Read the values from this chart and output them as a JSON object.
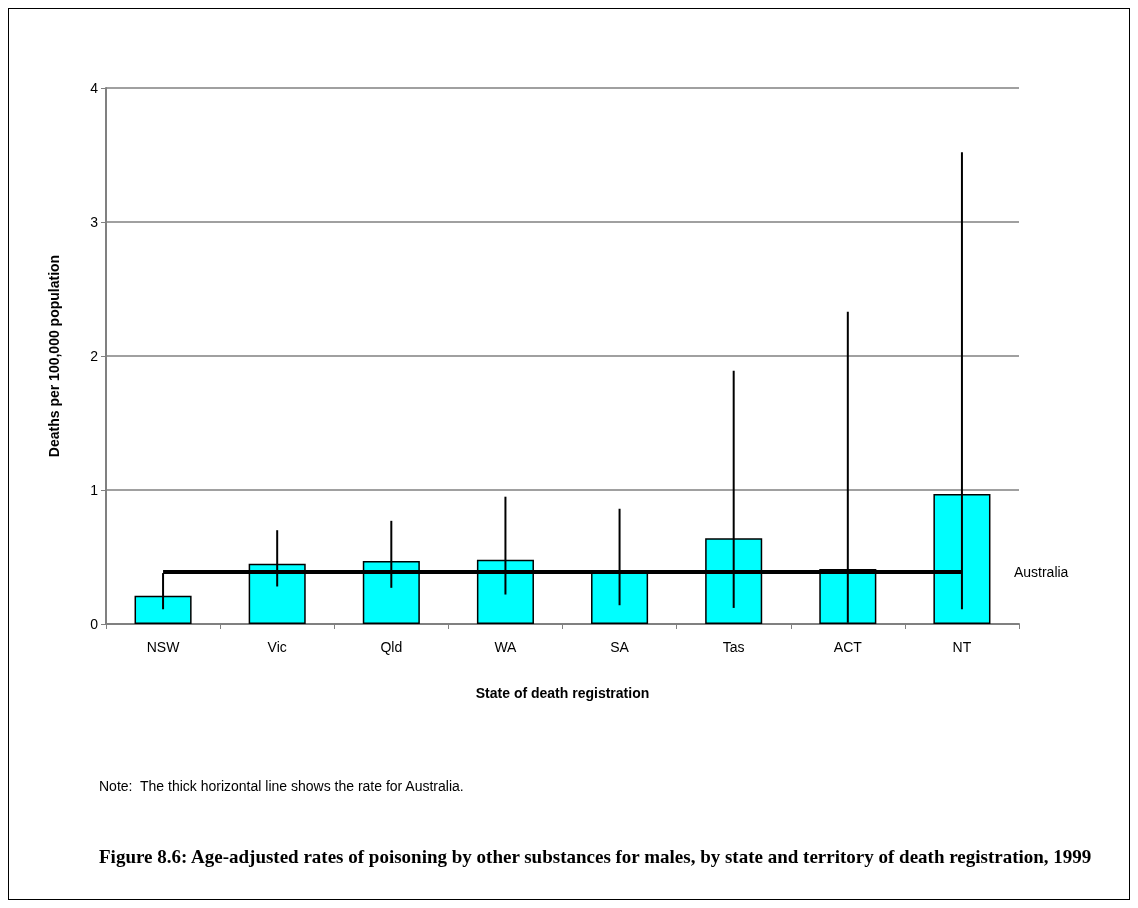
{
  "chart_data": {
    "type": "bar",
    "title": "Figure 8.6: Age-adjusted rates of poisoning by other substances for males, by state and territory of death registration, 1999",
    "xlabel": "State of death registration",
    "ylabel": "Deaths per 100,000 population",
    "categories": [
      "NSW",
      "Vic",
      "Qld",
      "WA",
      "SA",
      "Tas",
      "ACT",
      "NT"
    ],
    "values": [
      0.21,
      0.45,
      0.47,
      0.48,
      0.4,
      0.64,
      0.41,
      0.97
    ],
    "errors": [
      [
        0.11,
        0.38
      ],
      [
        0.28,
        0.7
      ],
      [
        0.27,
        0.77
      ],
      [
        0.22,
        0.95
      ],
      [
        0.14,
        0.86
      ],
      [
        0.12,
        1.89
      ],
      [
        0.01,
        2.33
      ],
      [
        0.11,
        3.52
      ]
    ],
    "color": "#00ffff",
    "ylim": [
      0,
      4
    ],
    "yticks": [
      0,
      1,
      2,
      3,
      4
    ],
    "grid": "y",
    "ref_lines": [
      {
        "axis": "y",
        "value": 0.39,
        "label": "Australia",
        "color": "#000000"
      }
    ],
    "annotations": [
      "Note:  The thick horizontal line shows the rate for Australia."
    ]
  }
}
